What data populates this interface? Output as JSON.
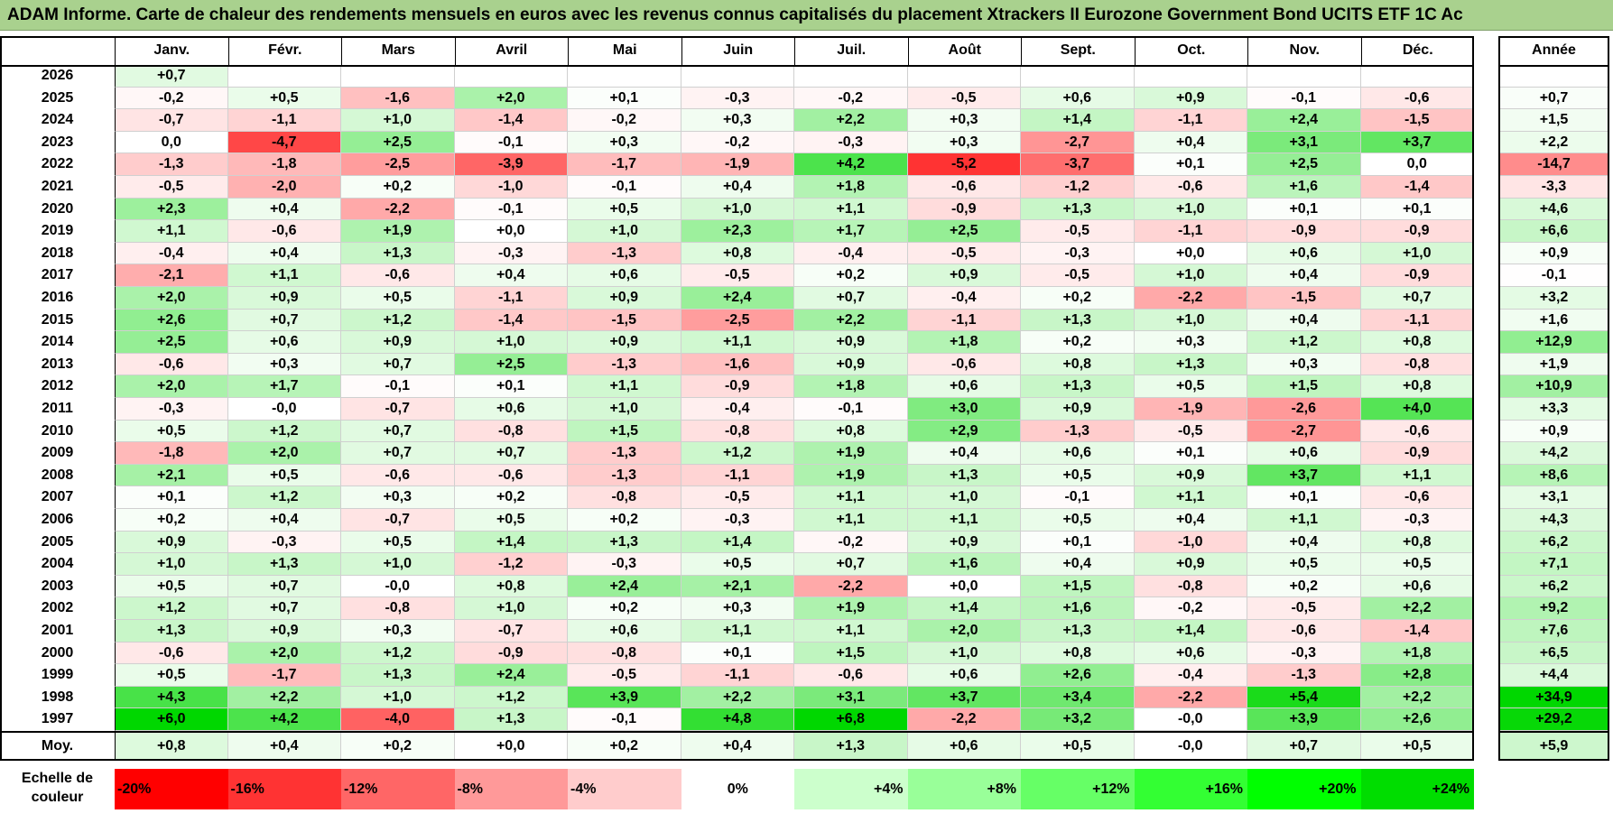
{
  "title": "ADAM Informe. Carte de chaleur des rendements mensuels en euros avec les revenus connus capitalisés du placement Xtrackers II Eurozone Government Bond UCITS ETF 1C Ac",
  "chart_data": {
    "type": "heatmap",
    "months": [
      "Janv.",
      "Févr.",
      "Mars",
      "Avril",
      "Mai",
      "Juin",
      "Juil.",
      "Août",
      "Sept.",
      "Oct.",
      "Nov.",
      "Déc."
    ],
    "year_header": "Année",
    "avg_label": "Moy.",
    "rows": [
      {
        "year": "2026",
        "values": [
          "+0,7",
          "",
          "",
          "",
          "",
          "",
          "",
          "",
          "",
          "",
          "",
          ""
        ],
        "annual": ""
      },
      {
        "year": "2025",
        "values": [
          "-0,2",
          "+0,5",
          "-1,6",
          "+2,0",
          "+0,1",
          "-0,3",
          "-0,2",
          "-0,5",
          "+0,6",
          "+0,9",
          "-0,1",
          "-0,6"
        ],
        "annual": "+0,7"
      },
      {
        "year": "2024",
        "values": [
          "-0,7",
          "-1,1",
          "+1,0",
          "-1,4",
          "-0,2",
          "+0,3",
          "+2,2",
          "+0,3",
          "+1,4",
          "-1,1",
          "+2,4",
          "-1,5"
        ],
        "annual": "+1,5"
      },
      {
        "year": "2023",
        "values": [
          "0,0",
          "-4,7",
          "+2,5",
          "-0,1",
          "+0,3",
          "-0,2",
          "-0,3",
          "+0,3",
          "-2,7",
          "+0,4",
          "+3,1",
          "+3,7"
        ],
        "annual": "+2,2"
      },
      {
        "year": "2022",
        "values": [
          "-1,3",
          "-1,8",
          "-2,5",
          "-3,9",
          "-1,7",
          "-1,9",
          "+4,2",
          "-5,2",
          "-3,7",
          "+0,1",
          "+2,5",
          "0,0"
        ],
        "annual": "-14,7"
      },
      {
        "year": "2021",
        "values": [
          "-0,5",
          "-2,0",
          "+0,2",
          "-1,0",
          "-0,1",
          "+0,4",
          "+1,8",
          "-0,6",
          "-1,2",
          "-0,6",
          "+1,6",
          "-1,4"
        ],
        "annual": "-3,3"
      },
      {
        "year": "2020",
        "values": [
          "+2,3",
          "+0,4",
          "-2,2",
          "-0,1",
          "+0,5",
          "+1,0",
          "+1,1",
          "-0,9",
          "+1,3",
          "+1,0",
          "+0,1",
          "+0,1"
        ],
        "annual": "+4,6"
      },
      {
        "year": "2019",
        "values": [
          "+1,1",
          "-0,6",
          "+1,9",
          "+0,0",
          "+1,0",
          "+2,3",
          "+1,7",
          "+2,5",
          "-0,5",
          "-1,1",
          "-0,9",
          "-0,9"
        ],
        "annual": "+6,6"
      },
      {
        "year": "2018",
        "values": [
          "-0,4",
          "+0,4",
          "+1,3",
          "-0,3",
          "-1,3",
          "+0,8",
          "-0,4",
          "-0,5",
          "-0,3",
          "+0,0",
          "+0,6",
          "+1,0"
        ],
        "annual": "+0,9"
      },
      {
        "year": "2017",
        "values": [
          "-2,1",
          "+1,1",
          "-0,6",
          "+0,4",
          "+0,6",
          "-0,5",
          "+0,2",
          "+0,9",
          "-0,5",
          "+1,0",
          "+0,4",
          "-0,9"
        ],
        "annual": "-0,1"
      },
      {
        "year": "2016",
        "values": [
          "+2,0",
          "+0,9",
          "+0,5",
          "-1,1",
          "+0,9",
          "+2,4",
          "+0,7",
          "-0,4",
          "+0,2",
          "-2,2",
          "-1,5",
          "+0,7"
        ],
        "annual": "+3,2"
      },
      {
        "year": "2015",
        "values": [
          "+2,6",
          "+0,7",
          "+1,2",
          "-1,4",
          "-1,5",
          "-2,5",
          "+2,2",
          "-1,1",
          "+1,3",
          "+1,0",
          "+0,4",
          "-1,1"
        ],
        "annual": "+1,6"
      },
      {
        "year": "2014",
        "values": [
          "+2,5",
          "+0,6",
          "+0,9",
          "+1,0",
          "+0,9",
          "+1,1",
          "+0,9",
          "+1,8",
          "+0,2",
          "+0,3",
          "+1,2",
          "+0,8"
        ],
        "annual": "+12,9"
      },
      {
        "year": "2013",
        "values": [
          "-0,6",
          "+0,3",
          "+0,7",
          "+2,5",
          "-1,3",
          "-1,6",
          "+0,9",
          "-0,6",
          "+0,8",
          "+1,3",
          "+0,3",
          "-0,8"
        ],
        "annual": "+1,9"
      },
      {
        "year": "2012",
        "values": [
          "+2,0",
          "+1,7",
          "-0,1",
          "+0,1",
          "+1,1",
          "-0,9",
          "+1,8",
          "+0,6",
          "+1,3",
          "+0,5",
          "+1,5",
          "+0,8"
        ],
        "annual": "+10,9"
      },
      {
        "year": "2011",
        "values": [
          "-0,3",
          "-0,0",
          "-0,7",
          "+0,6",
          "+1,0",
          "-0,4",
          "-0,1",
          "+3,0",
          "+0,9",
          "-1,9",
          "-2,6",
          "+4,0"
        ],
        "annual": "+3,3"
      },
      {
        "year": "2010",
        "values": [
          "+0,5",
          "+1,2",
          "+0,7",
          "-0,8",
          "+1,5",
          "-0,8",
          "+0,8",
          "+2,9",
          "-1,3",
          "-0,5",
          "-2,7",
          "-0,6"
        ],
        "annual": "+0,9"
      },
      {
        "year": "2009",
        "values": [
          "-1,8",
          "+2,0",
          "+0,7",
          "+0,7",
          "-1,3",
          "+1,2",
          "+1,9",
          "+0,4",
          "+0,6",
          "+0,1",
          "+0,6",
          "-0,9"
        ],
        "annual": "+4,2"
      },
      {
        "year": "2008",
        "values": [
          "+2,1",
          "+0,5",
          "-0,6",
          "-0,6",
          "-1,3",
          "-1,1",
          "+1,9",
          "+1,3",
          "+0,5",
          "+0,9",
          "+3,7",
          "+1,1"
        ],
        "annual": "+8,6"
      },
      {
        "year": "2007",
        "values": [
          "+0,1",
          "+1,2",
          "+0,3",
          "+0,2",
          "-0,8",
          "-0,5",
          "+1,1",
          "+1,0",
          "-0,1",
          "+1,1",
          "+0,1",
          "-0,6"
        ],
        "annual": "+3,1"
      },
      {
        "year": "2006",
        "values": [
          "+0,2",
          "+0,4",
          "-0,7",
          "+0,5",
          "+0,2",
          "-0,3",
          "+1,1",
          "+1,1",
          "+0,5",
          "+0,4",
          "+1,1",
          "-0,3"
        ],
        "annual": "+4,3"
      },
      {
        "year": "2005",
        "values": [
          "+0,9",
          "-0,3",
          "+0,5",
          "+1,4",
          "+1,3",
          "+1,4",
          "-0,2",
          "+0,9",
          "+0,1",
          "-1,0",
          "+0,4",
          "+0,8"
        ],
        "annual": "+6,2"
      },
      {
        "year": "2004",
        "values": [
          "+1,0",
          "+1,3",
          "+1,0",
          "-1,2",
          "-0,3",
          "+0,5",
          "+0,7",
          "+1,6",
          "+0,4",
          "+0,9",
          "+0,5",
          "+0,5"
        ],
        "annual": "+7,1"
      },
      {
        "year": "2003",
        "values": [
          "+0,5",
          "+0,7",
          "-0,0",
          "+0,8",
          "+2,4",
          "+2,1",
          "-2,2",
          "+0,0",
          "+1,5",
          "-0,8",
          "+0,2",
          "+0,6"
        ],
        "annual": "+6,2"
      },
      {
        "year": "2002",
        "values": [
          "+1,2",
          "+0,7",
          "-0,8",
          "+1,0",
          "+0,2",
          "+0,3",
          "+1,9",
          "+1,4",
          "+1,6",
          "-0,2",
          "-0,5",
          "+2,2"
        ],
        "annual": "+9,2"
      },
      {
        "year": "2001",
        "values": [
          "+1,3",
          "+0,9",
          "+0,3",
          "-0,7",
          "+0,6",
          "+1,1",
          "+1,1",
          "+2,0",
          "+1,3",
          "+1,4",
          "-0,6",
          "-1,4"
        ],
        "annual": "+7,6"
      },
      {
        "year": "2000",
        "values": [
          "-0,6",
          "+2,0",
          "+1,2",
          "-0,9",
          "-0,8",
          "+0,1",
          "+1,5",
          "+1,0",
          "+0,8",
          "+0,6",
          "-0,3",
          "+1,8"
        ],
        "annual": "+6,5"
      },
      {
        "year": "1999",
        "values": [
          "+0,5",
          "-1,7",
          "+1,3",
          "+2,4",
          "-0,5",
          "-1,1",
          "-0,6",
          "+0,6",
          "+2,6",
          "-0,4",
          "-1,3",
          "+2,8"
        ],
        "annual": "+4,4"
      },
      {
        "year": "1998",
        "values": [
          "+4,3",
          "+2,2",
          "+1,0",
          "+1,2",
          "+3,9",
          "+2,2",
          "+3,1",
          "+3,7",
          "+3,4",
          "-2,2",
          "+5,4",
          "+2,2"
        ],
        "annual": "+34,9"
      },
      {
        "year": "1997",
        "values": [
          "+6,0",
          "+4,2",
          "-4,0",
          "+1,3",
          "-0,1",
          "+4,8",
          "+6,8",
          "-2,2",
          "+3,2",
          "-0,0",
          "+3,9",
          "+2,6"
        ],
        "annual": "+29,2"
      }
    ],
    "averages": [
      "+0,8",
      "+0,4",
      "+0,2",
      "+0,0",
      "+0,2",
      "+0,4",
      "+1,3",
      "+0,6",
      "+0,5",
      "-0,0",
      "+0,7",
      "+0,5"
    ],
    "average_annual": "+5,9",
    "scale_label_line1": "Echelle de",
    "scale_label_line2": "couleur",
    "scale": [
      {
        "label": "-20%",
        "value": -20,
        "color": "#ff0000"
      },
      {
        "label": "-16%",
        "value": -16,
        "color": "#ff3333"
      },
      {
        "label": "-12%",
        "value": -12,
        "color": "#ff6666"
      },
      {
        "label": "-8%",
        "value": -8,
        "color": "#ff9999"
      },
      {
        "label": "-4%",
        "value": -4,
        "color": "#ffcccc"
      },
      {
        "label": "0%",
        "value": 0,
        "color": "#ffffff"
      },
      {
        "label": "+4%",
        "value": 4,
        "color": "#ccffcc"
      },
      {
        "label": "+8%",
        "value": 8,
        "color": "#99ff99"
      },
      {
        "label": "+12%",
        "value": 12,
        "color": "#66ff66"
      },
      {
        "label": "+16%",
        "value": 16,
        "color": "#33ff33"
      },
      {
        "label": "+20%",
        "value": 20,
        "color": "#00ff00"
      },
      {
        "label": "+24%",
        "value": 24,
        "color": "#00dd00"
      }
    ],
    "colors": {
      "title_bg": "#a9d18e",
      "negative_max": "#ff0000",
      "positive_max": "#00dd00",
      "neutral": "#ffffff"
    }
  }
}
